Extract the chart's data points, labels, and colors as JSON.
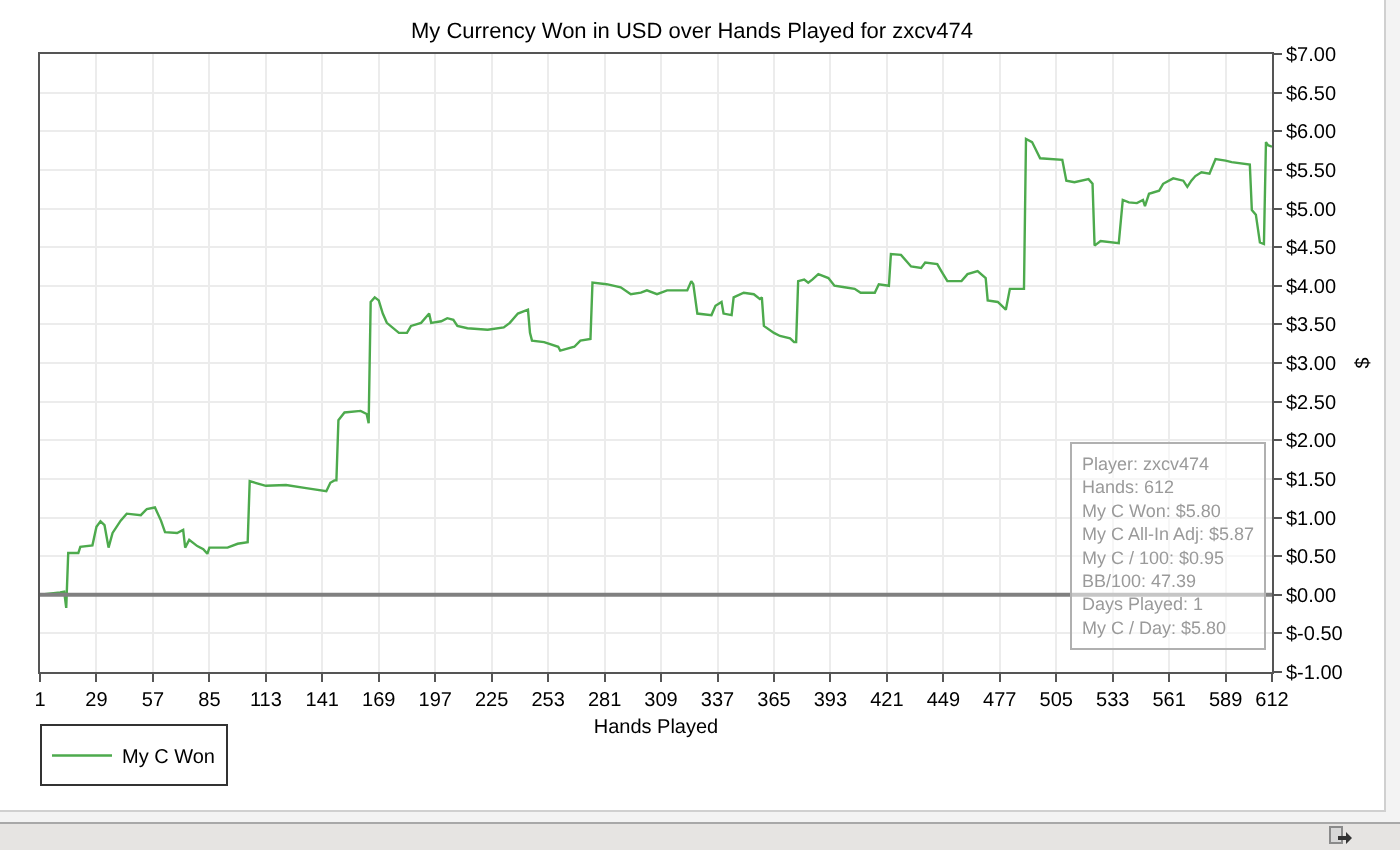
{
  "chart_data": {
    "type": "line",
    "title": "My Currency Won in USD over Hands Played for zxcv474",
    "xlabel": "Hands Played",
    "ylabel": "$",
    "x": [
      1,
      11,
      13,
      14,
      15,
      20,
      21,
      27,
      29,
      31,
      33,
      35,
      37,
      41,
      44,
      51,
      54,
      58,
      61,
      63,
      69,
      72,
      73,
      75,
      79,
      82,
      84,
      85,
      94,
      99,
      104,
      105,
      113,
      123,
      133,
      143,
      145,
      147,
      148,
      149,
      152,
      160,
      163,
      164,
      165,
      167,
      169,
      171,
      173,
      179,
      183,
      185,
      190,
      194,
      195,
      200,
      203,
      206,
      208,
      213,
      223,
      231,
      234,
      238,
      243,
      244,
      245,
      251,
      258,
      259,
      266,
      269,
      274,
      275,
      282,
      289,
      294,
      299,
      302,
      307,
      312,
      322,
      324,
      325,
      327,
      334,
      336,
      339,
      340,
      344,
      345,
      350,
      355,
      358,
      359,
      360,
      365,
      368,
      373,
      375,
      376,
      377,
      380,
      382,
      384,
      387,
      392,
      395,
      400,
      405,
      408,
      415,
      417,
      422,
      423,
      428,
      433,
      438,
      440,
      446,
      448,
      451,
      458,
      461,
      466,
      470,
      471,
      476,
      480,
      482,
      488,
      489,
      490,
      493,
      497,
      508,
      510,
      514,
      521,
      523,
      524,
      527,
      536,
      538,
      541,
      545,
      548,
      549,
      551,
      556,
      558,
      563,
      568,
      570,
      572,
      574,
      577,
      581,
      584,
      589,
      592,
      601,
      602,
      604,
      606,
      608,
      609,
      610,
      612
    ],
    "series": [
      {
        "name": "My C Won",
        "color": "#4daa4d",
        "values": [
          0.0,
          0.03,
          0.04,
          -0.17,
          0.54,
          0.54,
          0.62,
          0.64,
          0.88,
          0.95,
          0.9,
          0.61,
          0.8,
          0.96,
          1.05,
          1.03,
          1.11,
          1.13,
          0.96,
          0.81,
          0.8,
          0.84,
          0.61,
          0.71,
          0.63,
          0.59,
          0.53,
          0.61,
          0.61,
          0.66,
          0.68,
          1.47,
          1.41,
          1.42,
          1.38,
          1.34,
          1.45,
          1.48,
          1.48,
          2.26,
          2.36,
          2.38,
          2.34,
          2.22,
          3.79,
          3.85,
          3.81,
          3.64,
          3.52,
          3.39,
          3.39,
          3.48,
          3.52,
          3.64,
          3.52,
          3.54,
          3.58,
          3.56,
          3.48,
          3.45,
          3.43,
          3.46,
          3.52,
          3.64,
          3.69,
          3.39,
          3.29,
          3.27,
          3.21,
          3.16,
          3.21,
          3.29,
          3.31,
          4.04,
          4.02,
          3.98,
          3.89,
          3.91,
          3.94,
          3.89,
          3.94,
          3.94,
          4.06,
          4.02,
          3.64,
          3.62,
          3.74,
          3.79,
          3.64,
          3.62,
          3.85,
          3.91,
          3.89,
          3.83,
          3.85,
          3.48,
          3.39,
          3.35,
          3.32,
          3.27,
          3.27,
          4.06,
          4.08,
          4.04,
          4.08,
          4.15,
          4.1,
          4.0,
          3.98,
          3.96,
          3.91,
          3.91,
          4.02,
          4.0,
          4.41,
          4.4,
          4.25,
          4.23,
          4.3,
          4.28,
          4.19,
          4.06,
          4.06,
          4.15,
          4.19,
          4.1,
          3.81,
          3.79,
          3.69,
          3.96,
          3.96,
          3.96,
          5.9,
          5.86,
          5.65,
          5.63,
          5.36,
          5.34,
          5.38,
          5.32,
          4.52,
          4.58,
          4.55,
          5.11,
          5.08,
          5.07,
          5.11,
          5.03,
          5.19,
          5.23,
          5.32,
          5.39,
          5.36,
          5.28,
          5.36,
          5.42,
          5.47,
          5.45,
          5.64,
          5.62,
          5.6,
          5.57,
          4.98,
          4.92,
          4.56,
          4.54,
          5.86,
          5.82,
          5.8
        ]
      }
    ],
    "xlim": [
      1,
      612
    ],
    "xticks": [
      1,
      29,
      57,
      85,
      113,
      141,
      169,
      197,
      225,
      253,
      281,
      309,
      337,
      365,
      393,
      421,
      449,
      477,
      505,
      533,
      561,
      589,
      612
    ],
    "ylim": [
      -1,
      7
    ],
    "yticks": [
      {
        "value": -1,
        "label": "$-1.00"
      },
      {
        "value": -0.5,
        "label": "$-0.50"
      },
      {
        "value": 0,
        "label": "$0.00"
      },
      {
        "value": 0.5,
        "label": "$0.50"
      },
      {
        "value": 1,
        "label": "$1.00"
      },
      {
        "value": 1.5,
        "label": "$1.50"
      },
      {
        "value": 2,
        "label": "$2.00"
      },
      {
        "value": 2.5,
        "label": "$2.50"
      },
      {
        "value": 3,
        "label": "$3.00"
      },
      {
        "value": 3.5,
        "label": "$3.50"
      },
      {
        "value": 4,
        "label": "$4.00"
      },
      {
        "value": 4.5,
        "label": "$4.50"
      },
      {
        "value": 5,
        "label": "$5.00"
      },
      {
        "value": 5.5,
        "label": "$5.50"
      },
      {
        "value": 6,
        "label": "$6.00"
      },
      {
        "value": 6.5,
        "label": "$6.50"
      },
      {
        "value": 7,
        "label": "$7.00"
      }
    ],
    "ref_lines": [
      {
        "axis": "y",
        "value": 0,
        "color": "#808080"
      }
    ],
    "annotations": [
      "Player: zxcv474\nHands: 612\nMy C Won: $5.80\nMy C All-In Adj: $5.87\nMy C / 100: $0.95\nBB/100: 47.39\nDays Played: 1\nMy C / Day: $5.80"
    ],
    "grid": true,
    "legend": "bottom left",
    "line_style": "solid"
  }
}
